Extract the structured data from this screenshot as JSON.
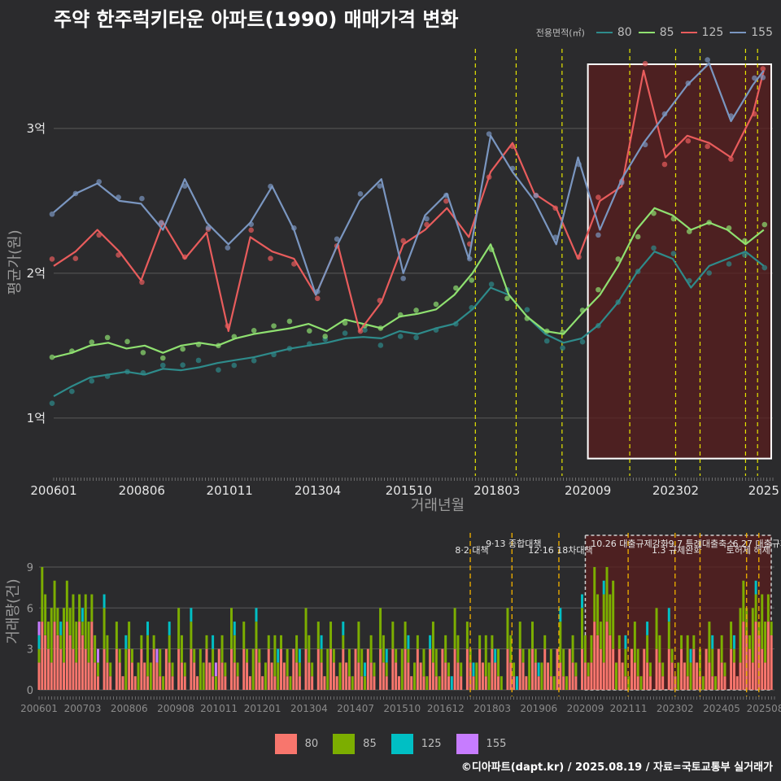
{
  "title": "주약 한주럭키타운 아파트(1990) 매매가격 변화",
  "caption": "©디아파트(dapt.kr) / 2025.08.19 / 자료=국토교통부 실거래가",
  "colors": {
    "background": "#2b2b2d",
    "grid": "#595959",
    "vline": "#e6e600",
    "vline2": "#e6a800",
    "highlight_fill": "#5a1d1d",
    "highlight_stroke": "#ffffff"
  },
  "chart_data": [
    {
      "type": "line",
      "title": "주약 한주럭키타운 아파트(1990) 매매가격 변화",
      "xlabel": "거래년월",
      "ylabel": "평균가(원)",
      "legend_title": "전용면적(㎡)",
      "legend_position": "top-right",
      "ylim": [
        0.6,
        3.55
      ],
      "y_unit": "억",
      "yticks": [
        {
          "v": 1,
          "label": "1억"
        },
        {
          "v": 2,
          "label": "2억"
        },
        {
          "v": 3,
          "label": "3억"
        }
      ],
      "xlim": [
        2006.0,
        2025.75
      ],
      "xticks": [
        {
          "t": 2006.0,
          "label": "200601"
        },
        {
          "t": 2008.42,
          "label": "200806"
        },
        {
          "t": 2010.83,
          "label": "201011"
        },
        {
          "t": 2013.25,
          "label": "201304"
        },
        {
          "t": 2015.75,
          "label": "201510"
        },
        {
          "t": 2018.17,
          "label": "201803"
        },
        {
          "t": 2020.67,
          "label": "202009"
        },
        {
          "t": 2023.08,
          "label": "202302"
        },
        {
          "t": 2025.5,
          "label": "2025"
        }
      ],
      "policy_lines": [
        2017.58,
        2018.7,
        2019.96,
        2021.82,
        2023.08,
        2023.75,
        2025.0,
        2025.33
      ],
      "highlight_range": [
        2020.67,
        2025.75
      ],
      "series": [
        {
          "name": "80",
          "color": "#2e8b8b",
          "x": [
            2006.0,
            2006.5,
            2007.0,
            2007.5,
            2008.0,
            2008.5,
            2009.0,
            2009.5,
            2010.0,
            2010.5,
            2011.0,
            2011.5,
            2012.0,
            2012.5,
            2013.0,
            2013.5,
            2014.0,
            2014.5,
            2015.0,
            2015.5,
            2016.0,
            2016.5,
            2017.0,
            2017.5,
            2018.0,
            2018.5,
            2019.0,
            2019.5,
            2020.0,
            2020.5,
            2021.0,
            2021.5,
            2022.0,
            2022.5,
            2023.0,
            2023.5,
            2024.0,
            2024.5,
            2025.0,
            2025.5
          ],
          "values": [
            1.15,
            1.22,
            1.28,
            1.3,
            1.32,
            1.3,
            1.34,
            1.33,
            1.35,
            1.38,
            1.4,
            1.42,
            1.45,
            1.48,
            1.5,
            1.52,
            1.55,
            1.56,
            1.55,
            1.6,
            1.58,
            1.62,
            1.65,
            1.75,
            1.9,
            1.85,
            1.7,
            1.58,
            1.52,
            1.55,
            1.65,
            1.8,
            2.0,
            2.15,
            2.1,
            1.9,
            2.05,
            2.1,
            2.15,
            2.05
          ]
        },
        {
          "name": "85",
          "color": "#8fe070",
          "x": [
            2006.0,
            2006.5,
            2007.0,
            2007.5,
            2008.0,
            2008.5,
            2009.0,
            2009.5,
            2010.0,
            2010.5,
            2011.0,
            2011.5,
            2012.0,
            2012.5,
            2013.0,
            2013.5,
            2014.0,
            2014.5,
            2015.0,
            2015.5,
            2016.0,
            2016.5,
            2017.0,
            2017.5,
            2018.0,
            2018.5,
            2019.0,
            2019.5,
            2020.0,
            2020.5,
            2021.0,
            2021.5,
            2022.0,
            2022.5,
            2023.0,
            2023.5,
            2024.0,
            2024.5,
            2025.0,
            2025.5
          ],
          "values": [
            1.42,
            1.45,
            1.5,
            1.52,
            1.48,
            1.5,
            1.45,
            1.5,
            1.52,
            1.5,
            1.55,
            1.58,
            1.6,
            1.62,
            1.65,
            1.6,
            1.68,
            1.65,
            1.62,
            1.7,
            1.72,
            1.75,
            1.85,
            2.0,
            2.2,
            1.85,
            1.7,
            1.6,
            1.58,
            1.72,
            1.85,
            2.05,
            2.3,
            2.45,
            2.4,
            2.3,
            2.35,
            2.3,
            2.2,
            2.3
          ]
        },
        {
          "name": "125",
          "color": "#e85c5c",
          "x": [
            2006.0,
            2006.6,
            2007.2,
            2007.8,
            2008.4,
            2009.0,
            2009.6,
            2010.2,
            2010.8,
            2011.4,
            2012.0,
            2012.6,
            2013.2,
            2013.8,
            2014.4,
            2015.0,
            2015.6,
            2016.2,
            2016.8,
            2017.4,
            2018.0,
            2018.6,
            2019.2,
            2019.8,
            2020.4,
            2021.0,
            2021.6,
            2022.2,
            2022.8,
            2023.4,
            2024.0,
            2024.6,
            2025.2,
            2025.5
          ],
          "values": [
            2.05,
            2.15,
            2.3,
            2.15,
            1.95,
            2.35,
            2.1,
            2.28,
            1.6,
            2.25,
            2.15,
            2.1,
            1.85,
            2.2,
            1.6,
            1.8,
            2.2,
            2.3,
            2.45,
            2.25,
            2.7,
            2.9,
            2.55,
            2.45,
            2.1,
            2.5,
            2.6,
            3.4,
            2.8,
            2.95,
            2.9,
            2.8,
            3.1,
            3.4
          ]
        },
        {
          "name": "155",
          "color": "#7a96c0",
          "x": [
            2006.0,
            2006.6,
            2007.2,
            2007.8,
            2008.4,
            2009.0,
            2009.6,
            2010.2,
            2010.8,
            2011.4,
            2012.0,
            2012.6,
            2013.2,
            2013.8,
            2014.4,
            2015.0,
            2015.6,
            2016.2,
            2016.8,
            2017.4,
            2018.0,
            2018.6,
            2019.2,
            2019.8,
            2020.4,
            2021.0,
            2021.6,
            2022.2,
            2022.8,
            2023.4,
            2024.0,
            2024.6,
            2025.2,
            2025.5
          ],
          "values": [
            2.42,
            2.55,
            2.62,
            2.5,
            2.48,
            2.3,
            2.65,
            2.35,
            2.2,
            2.35,
            2.6,
            2.3,
            1.85,
            2.2,
            2.5,
            2.65,
            2.0,
            2.4,
            2.55,
            2.1,
            2.95,
            2.7,
            2.5,
            2.2,
            2.8,
            2.3,
            2.65,
            2.9,
            3.1,
            3.3,
            3.45,
            3.05,
            3.3,
            3.4
          ]
        }
      ]
    },
    {
      "type": "bar",
      "title": "",
      "xlabel": "",
      "ylabel": "거래량(건)",
      "ylim": [
        0,
        11.5
      ],
      "yticks": [
        0,
        3,
        6,
        9
      ],
      "xlim": [
        2006.0,
        2025.75
      ],
      "xticks": [
        {
          "t": 2006.0,
          "label": "200601"
        },
        {
          "t": 2007.17,
          "label": "200703"
        },
        {
          "t": 2008.42,
          "label": "200806"
        },
        {
          "t": 2009.67,
          "label": "200908"
        },
        {
          "t": 2010.83,
          "label": "201011"
        },
        {
          "t": 2012.0,
          "label": "201201"
        },
        {
          "t": 2013.25,
          "label": "201304"
        },
        {
          "t": 2014.5,
          "label": "201407"
        },
        {
          "t": 2015.75,
          "label": "201510"
        },
        {
          "t": 2016.92,
          "label": "201612"
        },
        {
          "t": 2018.17,
          "label": "201803"
        },
        {
          "t": 2019.42,
          "label": "201906"
        },
        {
          "t": 2020.67,
          "label": "202009"
        },
        {
          "t": 2021.83,
          "label": "202111"
        },
        {
          "t": 2023.08,
          "label": "202302"
        },
        {
          "t": 2024.33,
          "label": "202405"
        },
        {
          "t": 2025.5,
          "label": "202508"
        }
      ],
      "highlight_range": [
        2020.67,
        2025.75
      ],
      "series_names": [
        "80",
        "85",
        "125",
        "155"
      ],
      "series_colors": [
        "#f8766d",
        "#7cae00",
        "#00bfc4",
        "#c77cff"
      ],
      "annotations": [
        {
          "t": 2017.58,
          "label": "8·2 대책"
        },
        {
          "t": 2018.7,
          "label": "9·13 종합대책"
        },
        {
          "t": 2019.96,
          "label": "12·16 18차대책"
        },
        {
          "t": 2021.82,
          "label": "10.26 대출규제강화"
        },
        {
          "t": 2023.08,
          "label": "1.3 규제완화"
        },
        {
          "t": 2023.75,
          "label": "9.7 특례대출축소"
        },
        {
          "t": 2025.0,
          "label": "토허제 해제"
        },
        {
          "t": 2025.33,
          "label": "6.27 대출규제"
        }
      ]
    }
  ]
}
